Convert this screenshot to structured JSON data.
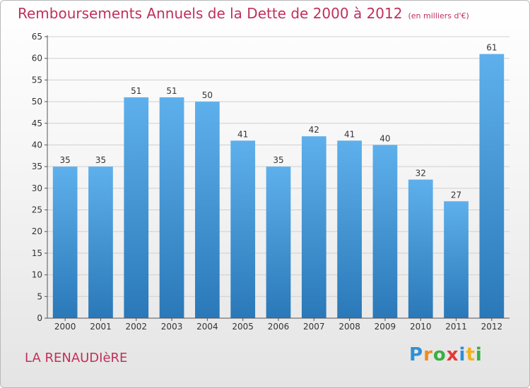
{
  "title": "Remboursements Annuels de la Dette de 2000 à 2012",
  "subtitle": "(en milliers d'€)",
  "commune": "LA RENAUDIèRE",
  "logo": {
    "text": "Proxiti",
    "letters": [
      {
        "char": "P",
        "color": "#2f8fd8"
      },
      {
        "char": "r",
        "color": "#f28a1e"
      },
      {
        "char": "o",
        "color": "#38b040"
      },
      {
        "char": "x",
        "color": "#e23a3a"
      },
      {
        "char": "i",
        "color": "#2f8fd8"
      },
      {
        "char": "t",
        "color": "#f2b21e"
      },
      {
        "char": "i",
        "color": "#38b040"
      }
    ]
  },
  "colors": {
    "bar_top": "#5eb0ec",
    "bar_bottom": "#2a78b8",
    "accent": "#c0305a",
    "text": "#333333",
    "grid": "#cfcfcf"
  },
  "chart_data": {
    "type": "bar",
    "categories": [
      "2000",
      "2001",
      "2002",
      "2003",
      "2004",
      "2005",
      "2006",
      "2007",
      "2008",
      "2009",
      "2010",
      "2011",
      "2012"
    ],
    "values": [
      35,
      35,
      51,
      51,
      50,
      41,
      35,
      42,
      41,
      40,
      32,
      27,
      61
    ],
    "data_labels": [
      "35",
      "35",
      "51",
      "51",
      "50",
      "41",
      "35",
      "42",
      "41",
      "40",
      "32",
      "27",
      "61"
    ],
    "yticks": [
      "0",
      "5",
      "10",
      "15",
      "20",
      "25",
      "30",
      "35",
      "40",
      "45",
      "50",
      "55",
      "60",
      "65"
    ],
    "ylim": [
      0,
      65
    ],
    "grid": true,
    "legend": "none"
  }
}
